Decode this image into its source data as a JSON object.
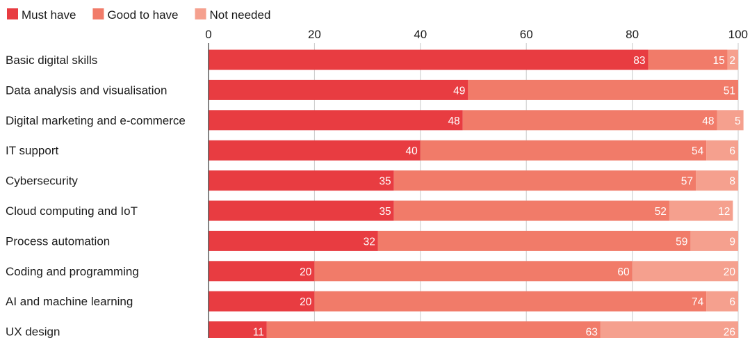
{
  "chart_data": {
    "type": "bar",
    "orientation": "horizontal",
    "stacked": true,
    "title": "",
    "xlabel": "",
    "ylabel": "",
    "xlim": [
      0,
      100
    ],
    "x_ticks": [
      0,
      20,
      40,
      60,
      80,
      100
    ],
    "grid": true,
    "legend_position": "top-left",
    "categories": [
      "Basic digital skills",
      "Data analysis and visualisation",
      "Digital marketing and e-commerce",
      "IT support",
      "Cybersecurity",
      "Cloud computing and IoT",
      "Process automation",
      "Coding and programming",
      "AI and machine learning",
      "UX design"
    ],
    "series": [
      {
        "name": "Must have",
        "color": "#e83c41",
        "values": [
          83,
          49,
          48,
          40,
          35,
          35,
          32,
          20,
          20,
          11
        ]
      },
      {
        "name": "Good to have",
        "color": "#f17b69",
        "values": [
          15,
          51,
          48,
          54,
          57,
          52,
          59,
          60,
          74,
          63
        ]
      },
      {
        "name": "Not needed",
        "color": "#f5a08e",
        "values": [
          2,
          0,
          5,
          6,
          8,
          12,
          9,
          20,
          6,
          26
        ]
      }
    ]
  }
}
